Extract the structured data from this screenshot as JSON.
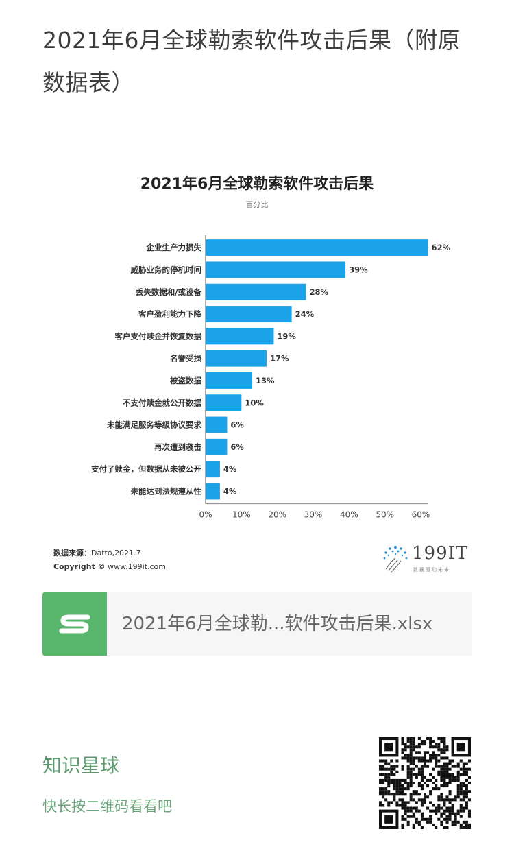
{
  "post": {
    "title": "2021年6月全球勒索软件攻击后果（附原数据表）"
  },
  "chart_data": {
    "type": "bar",
    "orientation": "horizontal",
    "title": "2021年6月全球勒索软件攻击后果",
    "subtitle": "百分比",
    "categories": [
      "企业生产力损失",
      "威胁业务的停机时间",
      "丢失数据和/或设备",
      "客户盈利能力下降",
      "客户支付赎金并恢复数据",
      "名誉受损",
      "被盗数据",
      "不支付赎金就公开数据",
      "未能满足服务等级协议要求",
      "再次遭到袭击",
      "支付了赎金，但数据从未被公开",
      "未能达到法规遵从性"
    ],
    "values": [
      62,
      39,
      28,
      24,
      19,
      17,
      13,
      10,
      6,
      6,
      4,
      4
    ],
    "value_labels": [
      "62%",
      "39%",
      "28%",
      "24%",
      "19%",
      "17%",
      "13%",
      "10%",
      "6%",
      "6%",
      "4%",
      "4%"
    ],
    "xlim": [
      0,
      60
    ],
    "x_ticks": [
      "0%",
      "10%",
      "20%",
      "30%",
      "40%",
      "50%",
      "60%"
    ],
    "grid": false,
    "bar_color": "#1aa3e8"
  },
  "source": {
    "label": "数据来源：",
    "text": "Datto,2021.7",
    "copyright_label": "Copyright ©",
    "copyright_text": "www.199it.com"
  },
  "brand": {
    "name": "199IT",
    "tagline": "数据驱动未来"
  },
  "file": {
    "name": "2021年6月全球勒...软件攻击后果.xlsx",
    "icon": "spreadsheet-s-icon"
  },
  "footer": {
    "title": "知识星球",
    "subtitle": "快长按二维码看看吧"
  }
}
